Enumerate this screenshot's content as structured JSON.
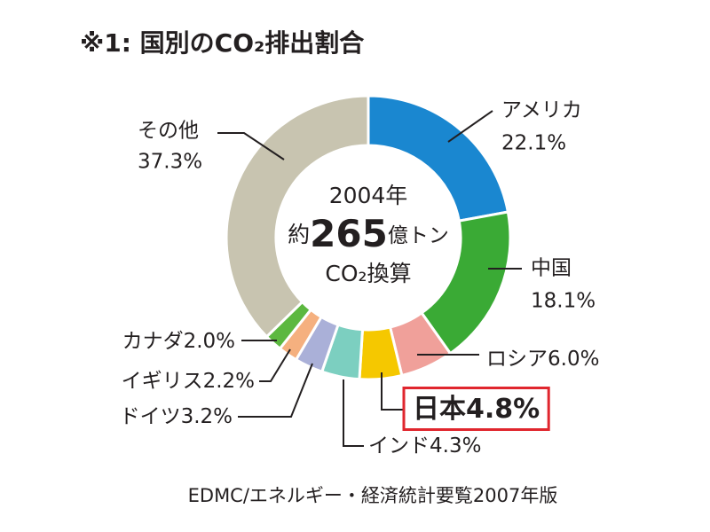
{
  "chart_data": {
    "type": "donut",
    "title": "※1: 国別のCO₂排出割合",
    "center": {
      "year": "2004年",
      "prefix": "約",
      "total": "265",
      "unit": "億トン",
      "note": "CO₂換算"
    },
    "categories": [
      "アメリカ",
      "中国",
      "ロシア",
      "日本",
      "インド",
      "ドイツ",
      "イギリス",
      "カナダ",
      "その他"
    ],
    "values": [
      22.1,
      18.1,
      6.0,
      4.8,
      4.3,
      3.2,
      2.2,
      2.0,
      37.3
    ],
    "value_labels": [
      "22.1%",
      "18.1%",
      "6.0%",
      "4.8%",
      "4.3%",
      "3.2%",
      "2.2%",
      "2.0%",
      "37.3%"
    ],
    "colors": [
      "#1a87d0",
      "#3aaa35",
      "#f0a09a",
      "#f5c800",
      "#7ccfc0",
      "#aab0d8",
      "#f5b07f",
      "#5cb840",
      "#c8c4b0"
    ],
    "highlight": 3,
    "highlight_color": "#e0262e",
    "source": "EDMC/エネルギー・経済統計要覧2007年版"
  }
}
